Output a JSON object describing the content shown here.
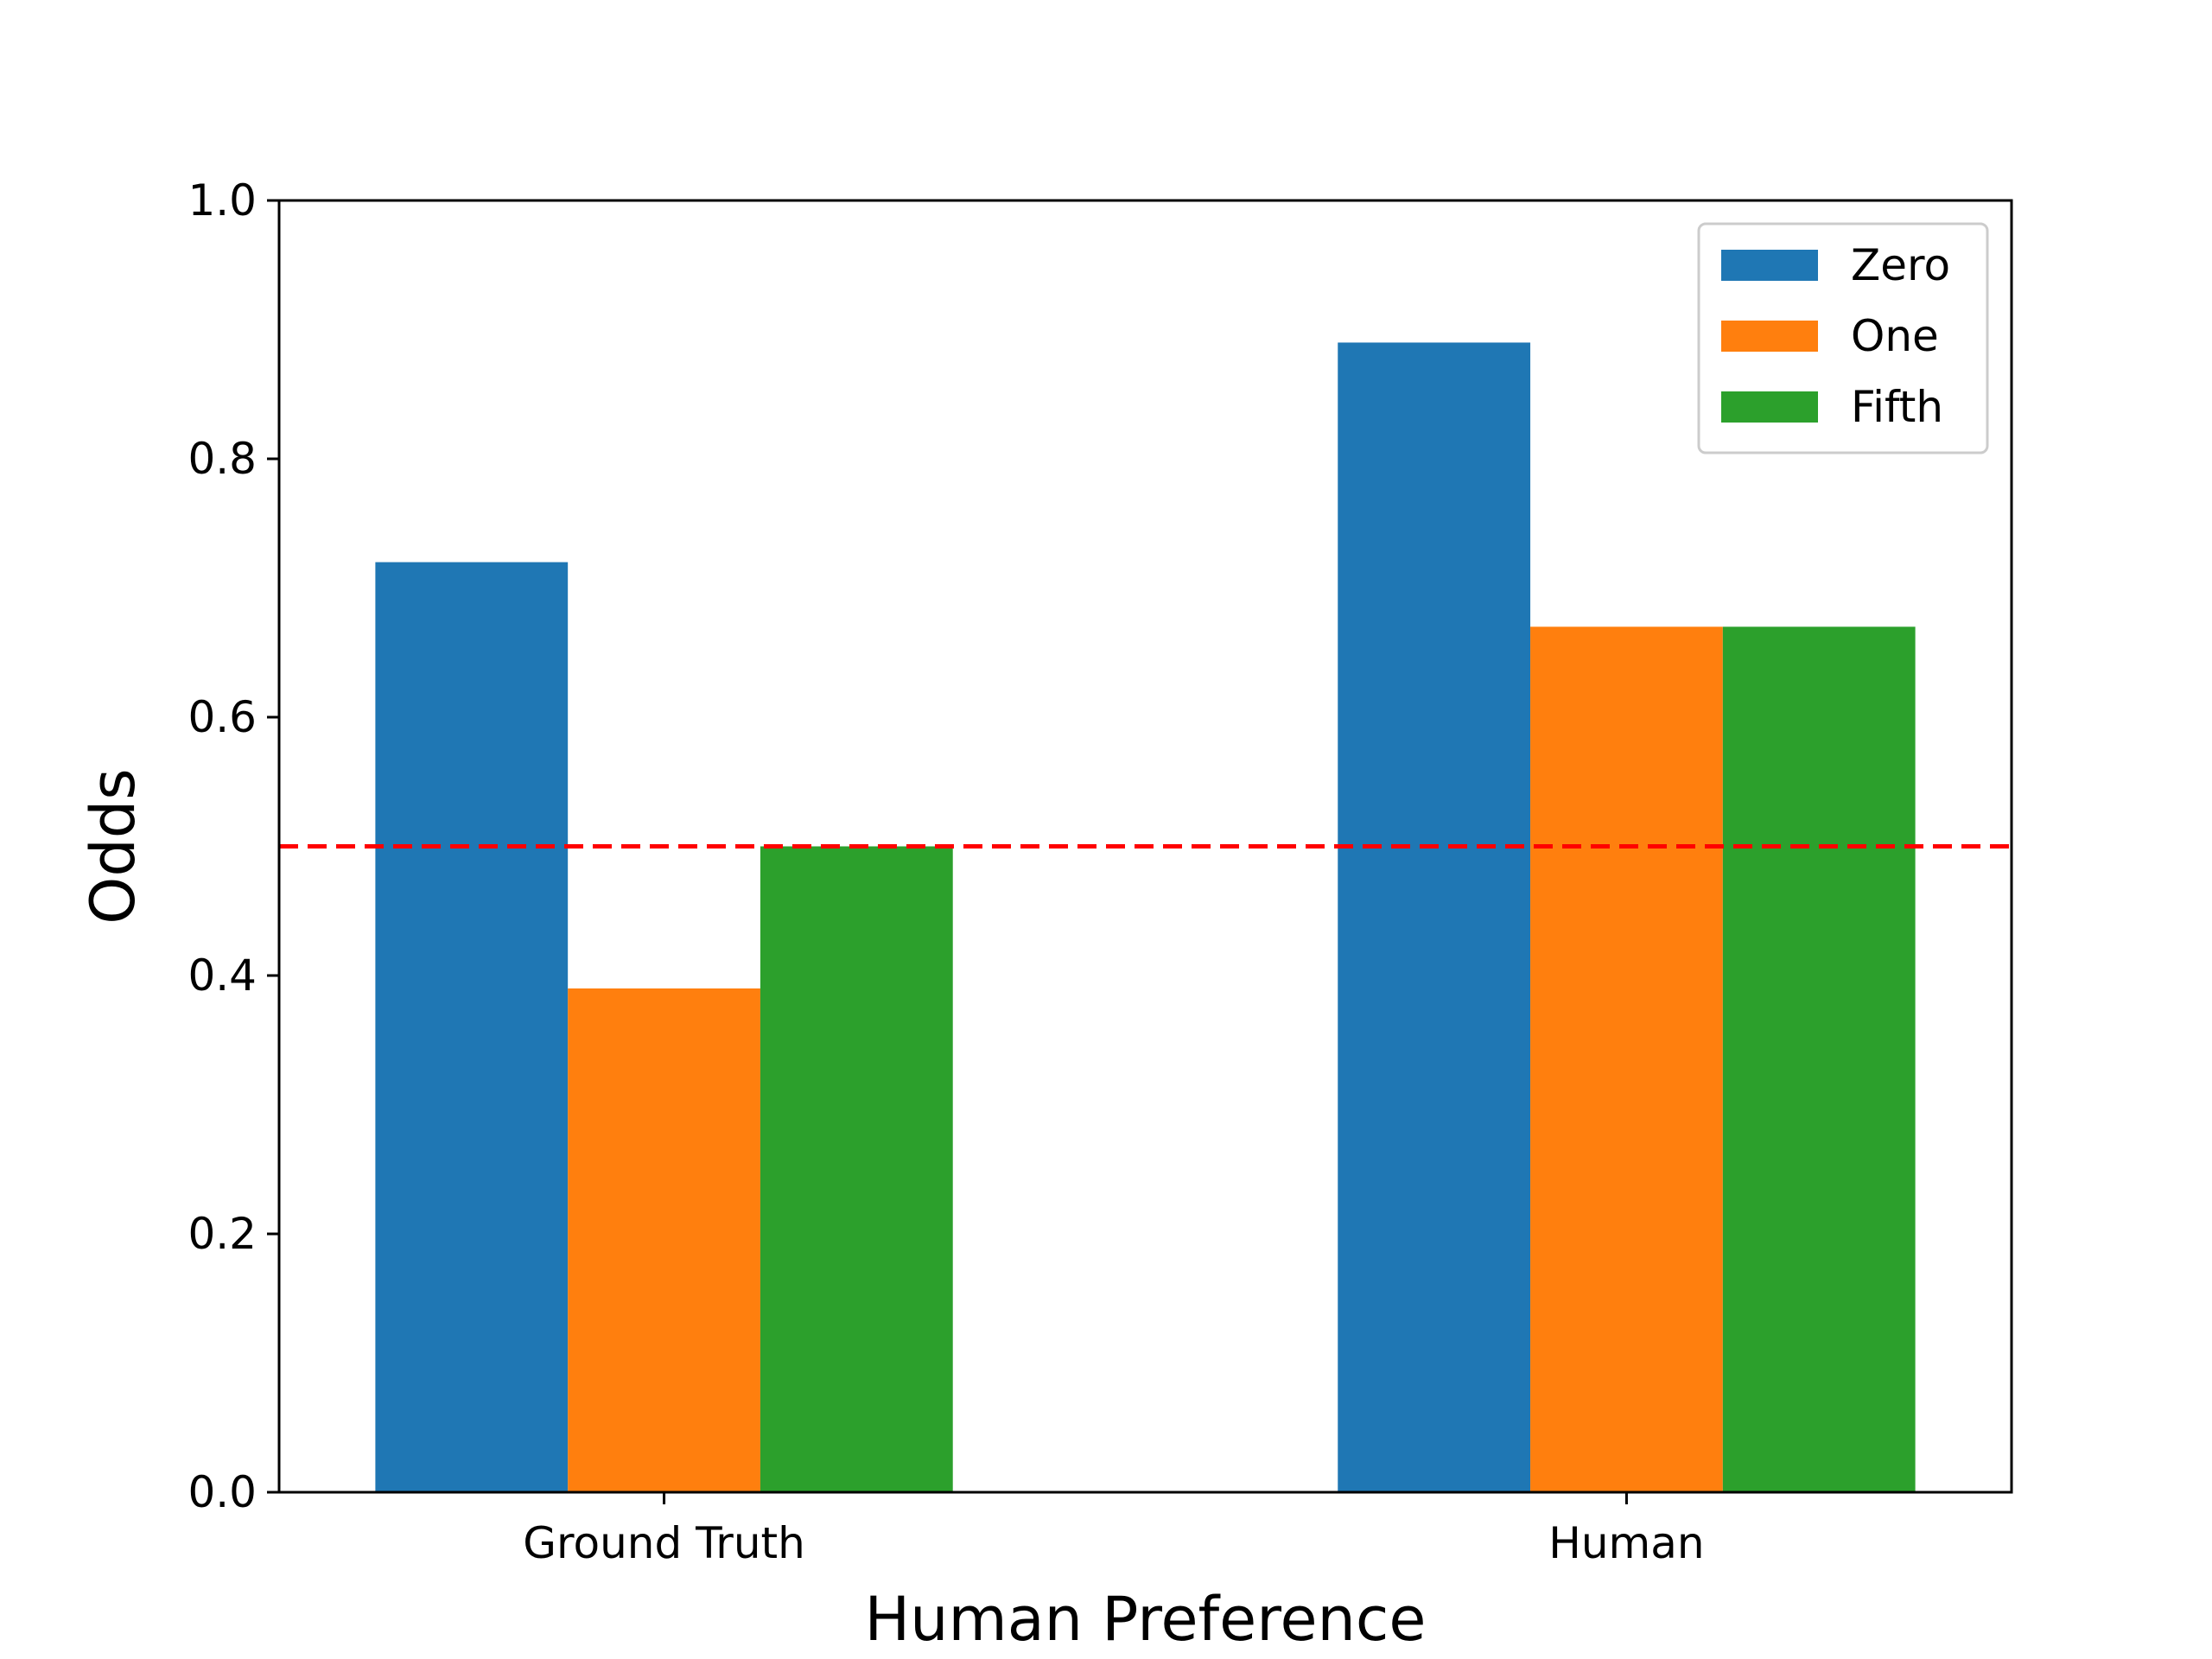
{
  "chart_data": {
    "type": "bar",
    "xlabel": "Human Preference",
    "ylabel": "Odds",
    "ylim": [
      0,
      1.0
    ],
    "yticks": [
      "0.0",
      "0.2",
      "0.4",
      "0.6",
      "0.8",
      "1.0"
    ],
    "categories": [
      "Ground Truth",
      "Human"
    ],
    "series": [
      {
        "name": "Zero",
        "color": "#1f77b4",
        "values": [
          0.72,
          0.89
        ]
      },
      {
        "name": "One",
        "color": "#ff7f0e",
        "values": [
          0.39,
          0.67
        ]
      },
      {
        "name": "Fifth",
        "color": "#2ca02c",
        "values": [
          0.5,
          0.67
        ]
      }
    ],
    "reference_line": {
      "y": 0.5,
      "color": "#ff0000",
      "style": "dashed"
    },
    "legend_placement": "top-right",
    "grid": false
  }
}
